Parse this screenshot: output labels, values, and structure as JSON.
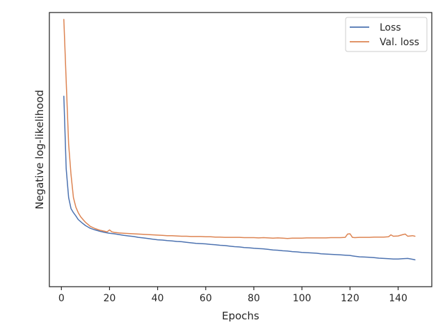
{
  "chart_data": {
    "type": "line",
    "title": "",
    "xlabel": "Epochs",
    "ylabel": "Negative log-likelihood",
    "xlim": [
      -5,
      154
    ],
    "ylim": [
      0.0,
      1.0
    ],
    "y_tick_labels_shown": false,
    "xticks": [
      0,
      20,
      40,
      60,
      80,
      100,
      120,
      140
    ],
    "grid": false,
    "legend_position": "top-right",
    "series": [
      {
        "name": "Loss",
        "color": "#4c72b0",
        "x": [
          1,
          2,
          3,
          4,
          5,
          6,
          7,
          8,
          9,
          10,
          12,
          14,
          16,
          18,
          20,
          22,
          24,
          26,
          28,
          30,
          32,
          34,
          36,
          38,
          40,
          42,
          44,
          46,
          48,
          50,
          52,
          54,
          56,
          58,
          60,
          62,
          64,
          66,
          68,
          70,
          72,
          74,
          76,
          78,
          80,
          82,
          84,
          86,
          88,
          90,
          92,
          94,
          96,
          98,
          100,
          102,
          104,
          106,
          108,
          110,
          112,
          114,
          116,
          118,
          120,
          122,
          124,
          126,
          128,
          130,
          132,
          134,
          136,
          138,
          140,
          142,
          144,
          146,
          147
        ],
        "values": [
          0.695,
          0.43,
          0.325,
          0.285,
          0.27,
          0.258,
          0.245,
          0.237,
          0.23,
          0.223,
          0.213,
          0.207,
          0.202,
          0.198,
          0.195,
          0.193,
          0.19,
          0.187,
          0.185,
          0.183,
          0.18,
          0.178,
          0.176,
          0.173,
          0.171,
          0.17,
          0.168,
          0.167,
          0.165,
          0.164,
          0.162,
          0.16,
          0.158,
          0.157,
          0.156,
          0.154,
          0.153,
          0.151,
          0.15,
          0.148,
          0.146,
          0.145,
          0.143,
          0.142,
          0.14,
          0.139,
          0.138,
          0.136,
          0.134,
          0.133,
          0.131,
          0.13,
          0.128,
          0.127,
          0.125,
          0.124,
          0.123,
          0.122,
          0.12,
          0.119,
          0.118,
          0.117,
          0.116,
          0.115,
          0.114,
          0.111,
          0.109,
          0.108,
          0.107,
          0.106,
          0.104,
          0.103,
          0.102,
          0.101,
          0.101,
          0.102,
          0.103,
          0.1,
          0.098
        ]
      },
      {
        "name": "Val. loss",
        "color": "#dd8452",
        "x": [
          1,
          2,
          3,
          4,
          5,
          6,
          7,
          8,
          9,
          10,
          12,
          14,
          16,
          18,
          19,
          20,
          21,
          22,
          24,
          26,
          28,
          30,
          32,
          34,
          36,
          38,
          40,
          42,
          44,
          46,
          48,
          50,
          52,
          54,
          56,
          58,
          60,
          62,
          64,
          66,
          68,
          70,
          72,
          74,
          76,
          78,
          80,
          82,
          84,
          86,
          88,
          90,
          92,
          94,
          96,
          98,
          100,
          102,
          104,
          106,
          108,
          110,
          112,
          114,
          116,
          118,
          119,
          120,
          121,
          122,
          124,
          126,
          128,
          130,
          132,
          134,
          136,
          137,
          138,
          140,
          142,
          143,
          144,
          146,
          147
        ],
        "values": [
          0.975,
          0.75,
          0.52,
          0.41,
          0.325,
          0.29,
          0.27,
          0.255,
          0.245,
          0.235,
          0.22,
          0.212,
          0.206,
          0.202,
          0.2,
          0.207,
          0.2,
          0.198,
          0.196,
          0.195,
          0.194,
          0.193,
          0.192,
          0.191,
          0.19,
          0.189,
          0.188,
          0.187,
          0.186,
          0.186,
          0.185,
          0.184,
          0.184,
          0.183,
          0.183,
          0.183,
          0.182,
          0.182,
          0.181,
          0.181,
          0.18,
          0.18,
          0.18,
          0.18,
          0.179,
          0.179,
          0.179,
          0.178,
          0.179,
          0.178,
          0.177,
          0.178,
          0.177,
          0.176,
          0.177,
          0.177,
          0.177,
          0.178,
          0.178,
          0.178,
          0.178,
          0.178,
          0.179,
          0.179,
          0.179,
          0.18,
          0.192,
          0.193,
          0.18,
          0.179,
          0.18,
          0.18,
          0.18,
          0.181,
          0.181,
          0.181,
          0.182,
          0.189,
          0.184,
          0.185,
          0.19,
          0.192,
          0.184,
          0.186,
          0.184
        ]
      }
    ]
  }
}
